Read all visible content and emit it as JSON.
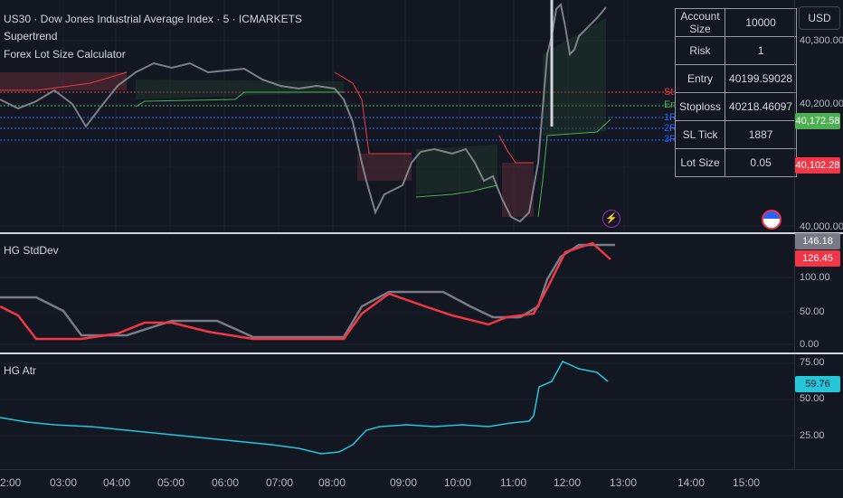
{
  "header": {
    "symbol_line": "US30 · Dow Jones Industrial Average Index · 5 · ICMARKETS",
    "indicator1": "Supertrend",
    "indicator2": "Forex Lot Size Calculator"
  },
  "currency_button": "USD",
  "calculator": {
    "rows": [
      {
        "key": "Account Size",
        "value": "10000"
      },
      {
        "key": "Risk",
        "value": "1"
      },
      {
        "key": "Entry",
        "value": "40199.59028"
      },
      {
        "key": "Stoploss",
        "value": "40218.46097"
      },
      {
        "key": "SL Tick",
        "value": "1887"
      },
      {
        "key": "Lot Size",
        "value": "0.05"
      }
    ]
  },
  "price_axis": {
    "ticks": [
      "40,300.00",
      "40,200.00",
      "40,000.00"
    ],
    "current_price": "40,172.58",
    "stop_price": "40,102.28",
    "colors": {
      "up": "#4caf50",
      "down": "#f23645"
    }
  },
  "level_labels": [
    "St",
    "En",
    "1R",
    "2R",
    "3R"
  ],
  "stddev_pane": {
    "title": "HG StdDev",
    "ticks": [
      "100.00",
      "50.00",
      "0.00"
    ],
    "value_gray": "146.18",
    "value_red": "126.45"
  },
  "atr_pane": {
    "title": "HG Atr",
    "ticks": [
      "75.00",
      "50.00",
      "25.00"
    ],
    "value": "59.76"
  },
  "time_axis": [
    "2:00",
    "03:00",
    "04:00",
    "05:00",
    "06:00",
    "07:00",
    "08:00",
    "09:00",
    "10:00",
    "11:00",
    "12:00",
    "13:00",
    "14:00",
    "15:00"
  ],
  "icons": {
    "flash": "lightning-icon",
    "flag": "us-flag-icon"
  },
  "chart_data": {
    "type": "line",
    "series": [
      {
        "name": "HG StdDev",
        "values": [
          70,
          60,
          40,
          10,
          10,
          10,
          20,
          20,
          30,
          30,
          30,
          20,
          10,
          10,
          10,
          10,
          50,
          75,
          70,
          50,
          30,
          25,
          40,
          50,
          70,
          130,
          146,
          126
        ]
      },
      {
        "name": "HG Atr",
        "values": [
          50,
          46,
          44,
          41,
          38,
          36,
          34,
          32,
          30,
          28,
          26,
          24,
          22,
          21,
          30,
          42,
          45,
          46,
          46,
          45,
          46,
          47,
          47,
          46,
          48,
          65,
          74,
          60
        ]
      }
    ]
  }
}
